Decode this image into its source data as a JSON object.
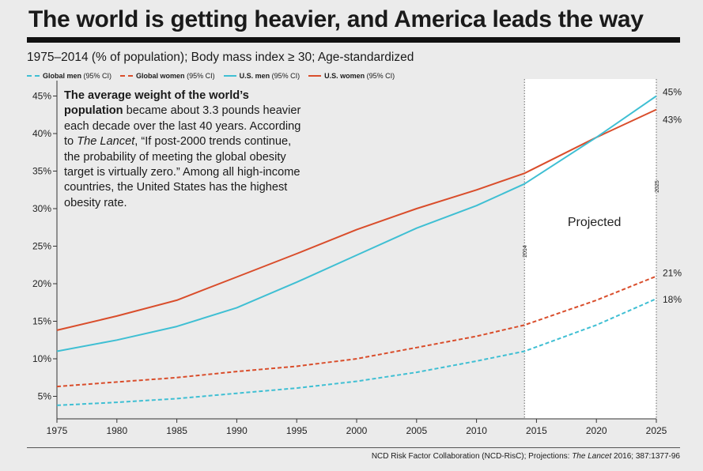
{
  "title": "The world is getting heavier, and America leads the way",
  "subtitle": "1975–2014 (% of population); Body mass index ≥ 30; Age-standardized",
  "legend": [
    {
      "label": "Global men",
      "suffix": "(95% CI)",
      "color": "#3fbfd3",
      "dashed": true
    },
    {
      "label": "Global women",
      "suffix": "(95% CI)",
      "color": "#d94d2b",
      "dashed": true
    },
    {
      "label": "U.S. men",
      "suffix": "(95% CI)",
      "color": "#3fbfd3",
      "dashed": false
    },
    {
      "label": "U.S. women",
      "suffix": "(95% CI)",
      "color": "#d94d2b",
      "dashed": false
    }
  ],
  "annotation": {
    "lead": "The average weight of the world’s population",
    "text1": " became about 3.3 pounds heavier each decade over the last 40 years. According to ",
    "source_name": "The Lancet",
    "text2": ", “If post-2000 trends continue, the probability of meeting the global obesity target is virtually zero.” Among all high-income countries, the United States has the highest obesity rate."
  },
  "source": {
    "prefix": "NCD Risk Factor Collaboration (NCD-RisC); Projections: ",
    "journal": "The Lancet",
    "suffix": "  2016; 387:1377-96"
  },
  "colors": {
    "men": "#3fbfd3",
    "women": "#d94d2b",
    "background": "#ebebeb",
    "projected_band": "#ffffff"
  },
  "chart_data": {
    "type": "line",
    "xlim": [
      1975,
      2025
    ],
    "ylim": [
      2,
      46
    ],
    "x_ticks": [
      1975,
      1980,
      1985,
      1990,
      1995,
      2000,
      2005,
      2010,
      2015,
      2020,
      2025
    ],
    "y_ticks": [
      5,
      10,
      15,
      20,
      25,
      30,
      35,
      40,
      45
    ],
    "y_tick_labels": [
      "5%",
      "10%",
      "15%",
      "20%",
      "25%",
      "30%",
      "35%",
      "40%",
      "45%"
    ],
    "grid": false,
    "projected_region": {
      "start": 2014,
      "end": 2025,
      "label": "Projected",
      "start_label": "2014",
      "end_label": "2025"
    },
    "series": [
      {
        "name": "U.S. women",
        "color": "#d94d2b",
        "dashed": false,
        "end_label": "43%",
        "x": [
          1975,
          1980,
          1985,
          1990,
          1995,
          2000,
          2005,
          2010,
          2014,
          2020,
          2025
        ],
        "y": [
          13.8,
          15.7,
          17.8,
          20.9,
          24.0,
          27.2,
          30.0,
          32.5,
          34.7,
          39.5,
          43.2
        ]
      },
      {
        "name": "U.S. men",
        "color": "#3fbfd3",
        "dashed": false,
        "end_label": "45%",
        "x": [
          1975,
          1980,
          1985,
          1990,
          1995,
          2000,
          2005,
          2010,
          2014,
          2020,
          2025
        ],
        "y": [
          11.0,
          12.5,
          14.3,
          16.8,
          20.2,
          23.8,
          27.4,
          30.4,
          33.3,
          39.5,
          45.0
        ]
      },
      {
        "name": "Global women",
        "color": "#d94d2b",
        "dashed": true,
        "end_label": "21%",
        "x": [
          1975,
          1980,
          1985,
          1990,
          1995,
          2000,
          2005,
          2010,
          2014,
          2020,
          2025
        ],
        "y": [
          6.3,
          6.9,
          7.5,
          8.3,
          9.0,
          10.0,
          11.5,
          13.0,
          14.5,
          17.8,
          21.0
        ]
      },
      {
        "name": "Global men",
        "color": "#3fbfd3",
        "dashed": true,
        "end_label": "18%",
        "x": [
          1975,
          1980,
          1985,
          1990,
          1995,
          2000,
          2005,
          2010,
          2014,
          2020,
          2025
        ],
        "y": [
          3.8,
          4.2,
          4.7,
          5.4,
          6.1,
          7.0,
          8.2,
          9.7,
          11.0,
          14.5,
          18.0
        ]
      }
    ]
  }
}
